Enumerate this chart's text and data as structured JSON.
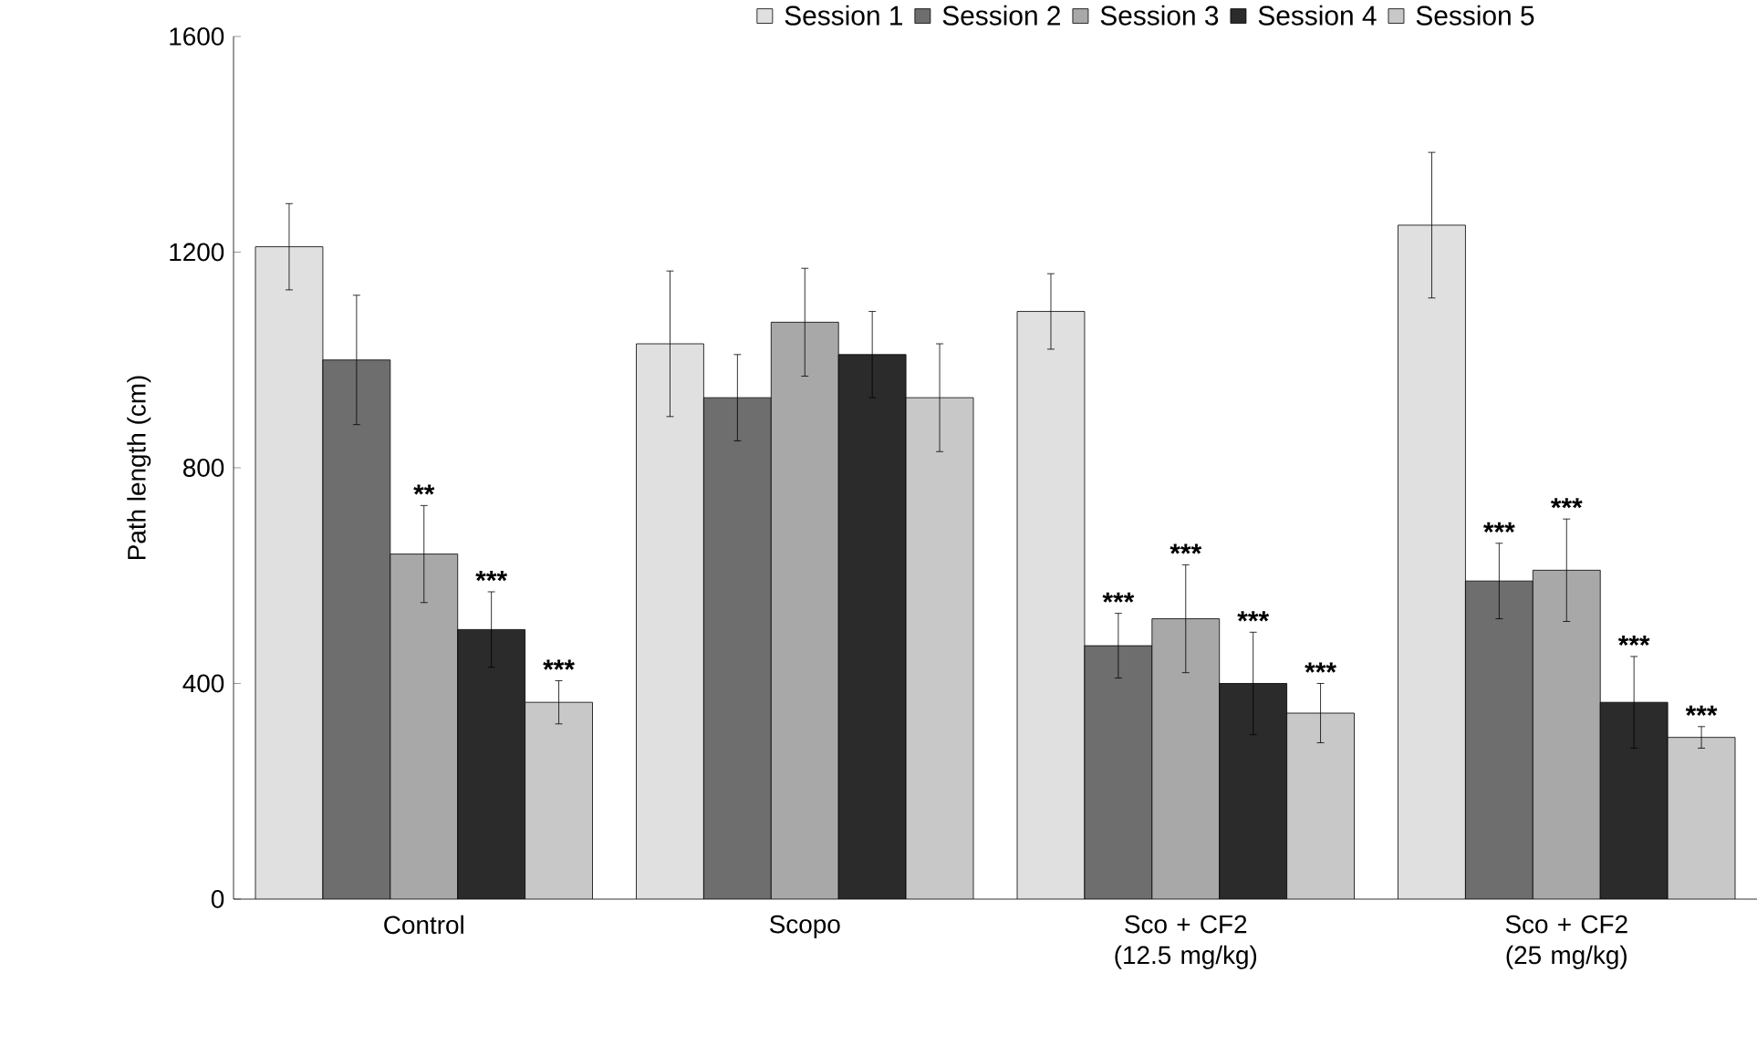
{
  "chart_data": {
    "type": "bar",
    "ylabel": "Path length (cm)",
    "categories": [
      "Control",
      "Scopo",
      "Sco + CF2 (12.5 mg/kg)",
      "Sco + CF2 (25 mg/kg)"
    ],
    "series": [
      {
        "name": "Session 1",
        "color": "#e0e0e0",
        "values": [
          1210,
          1030,
          1090,
          1250
        ],
        "errors": [
          80,
          135,
          70,
          135
        ]
      },
      {
        "name": "Session 2",
        "color": "#6e6e6e",
        "values": [
          1000,
          930,
          470,
          590
        ],
        "errors": [
          120,
          80,
          60,
          70
        ]
      },
      {
        "name": "Session 3",
        "color": "#a8a8a8",
        "values": [
          640,
          1070,
          520,
          610
        ],
        "errors": [
          90,
          100,
          100,
          95
        ]
      },
      {
        "name": "Session 4",
        "color": "#2b2b2b",
        "values": [
          500,
          1010,
          400,
          365
        ],
        "errors": [
          70,
          80,
          95,
          85
        ]
      },
      {
        "name": "Session 5",
        "color": "#c8c8c8",
        "values": [
          365,
          930,
          345,
          300
        ],
        "errors": [
          40,
          100,
          55,
          20
        ]
      }
    ],
    "ylim": [
      0,
      1600
    ],
    "yticks": [
      0,
      400,
      800,
      1200,
      1600
    ],
    "grid": false,
    "legend": "top",
    "annotations": [
      "**",
      "***",
      "***",
      "***",
      "***",
      "***",
      "***",
      "***",
      "***",
      "***",
      "***"
    ]
  }
}
